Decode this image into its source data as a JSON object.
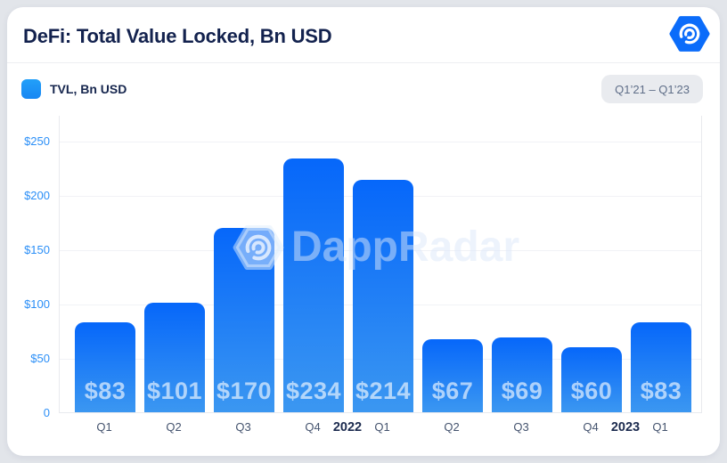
{
  "header": {
    "title": "DeFi: Total Value Locked, Bn USD"
  },
  "legend": {
    "label": "TVL, Bn USD",
    "swatch_color": "#1e99f7"
  },
  "range_badge": {
    "label": "Q1’21 – Q1’23"
  },
  "watermark": {
    "text": "DappRadar"
  },
  "chart_data": {
    "type": "bar",
    "title": "DeFi: Total Value Locked, Bn USD",
    "series_name": "TVL, Bn USD",
    "categories": [
      "Q1",
      "Q2",
      "Q3",
      "Q4",
      "Q1",
      "Q2",
      "Q3",
      "Q4",
      "Q1"
    ],
    "values": [
      83,
      101,
      170,
      234,
      214,
      67,
      69,
      60,
      83
    ],
    "bar_labels": [
      "$83",
      "$101",
      "$170",
      "$234",
      "$214",
      "$67",
      "$69",
      "$60",
      "$83"
    ],
    "year_markers": [
      {
        "label": "2022",
        "after_index": 3
      },
      {
        "label": "2023",
        "after_index": 7
      }
    ],
    "y_ticks": [
      {
        "label": "$250",
        "value": 250
      },
      {
        "label": "$200",
        "value": 200
      },
      {
        "label": "$150",
        "value": 150
      },
      {
        "label": "$100",
        "value": 100
      },
      {
        "label": "$50",
        "value": 50
      },
      {
        "label": "0",
        "value": 0
      }
    ],
    "ylim": [
      0,
      274
    ],
    "grid": true,
    "legend_position": "top-left",
    "period": "Q1’21 – Q1’23",
    "colors": {
      "bar_top": "#0667fa",
      "bar_bottom": "#3b97f1",
      "value_label": "rgba(255,255,255,0.62)",
      "y_tick": "#2b8ff7",
      "x_tick": "#44536e",
      "year_label": "#1b2a4e",
      "gridline": "#f1f2f6",
      "axis_border": "#e8eaee"
    }
  }
}
